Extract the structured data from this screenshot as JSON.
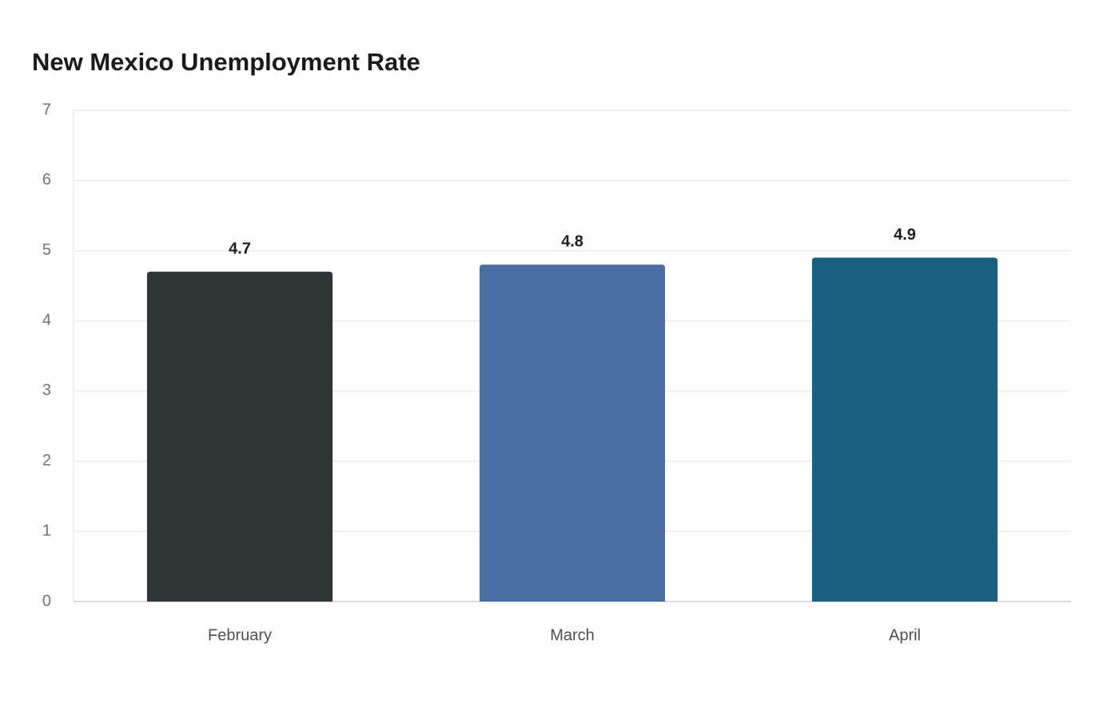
{
  "chart_data": {
    "type": "bar",
    "title": "New Mexico Unemployment Rate",
    "categories": [
      "February",
      "March",
      "April"
    ],
    "values": [
      4.7,
      4.8,
      4.9
    ],
    "colors": [
      "#2c3538",
      "#4a6fa5",
      "#17607f"
    ],
    "ylim": [
      0,
      7
    ],
    "yticks": [
      0,
      1,
      2,
      3,
      4,
      5,
      6,
      7
    ],
    "grid": true
  }
}
